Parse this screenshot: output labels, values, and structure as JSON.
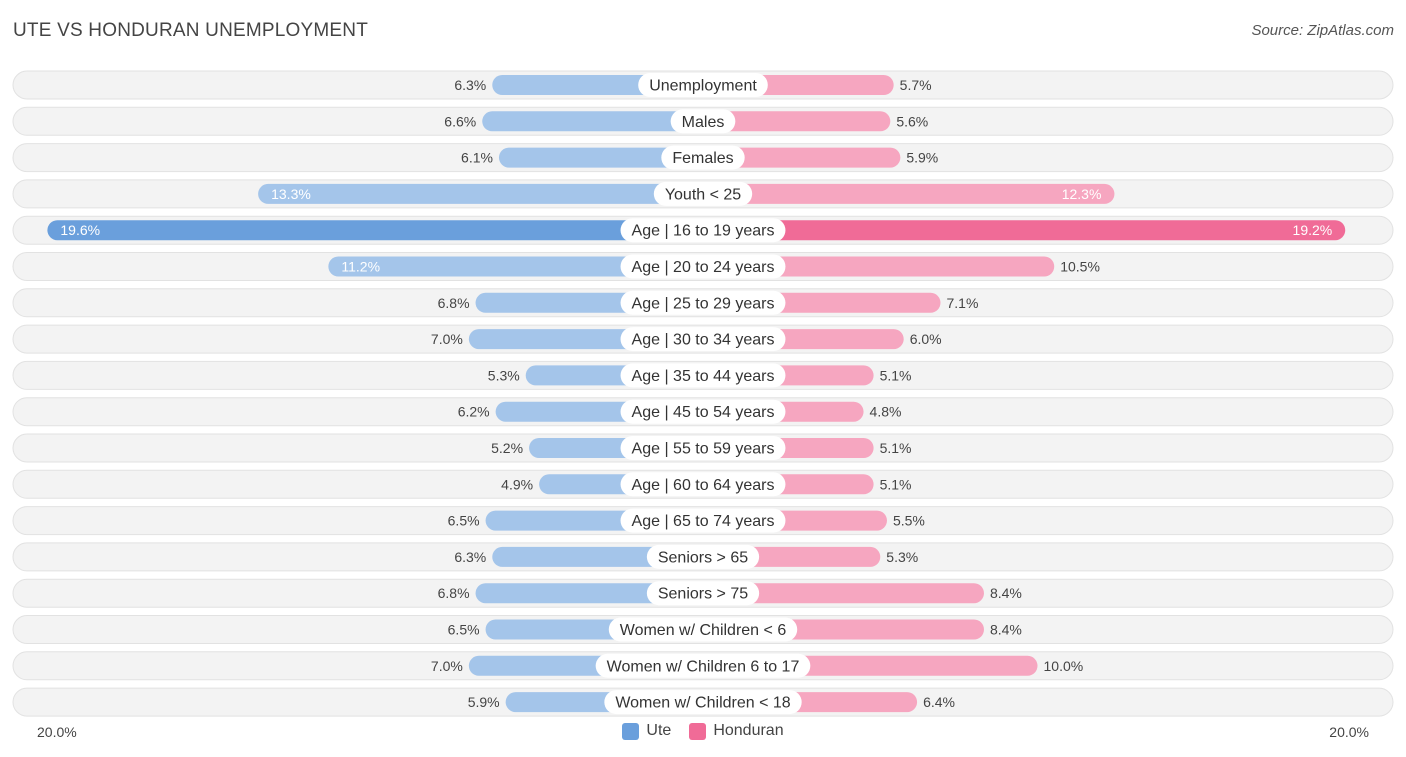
{
  "header": {
    "title": "UTE VS HONDURAN UNEMPLOYMENT",
    "source": "Source: ZipAtlas.com"
  },
  "colors": {
    "ute": "#a4c5ea",
    "ute_strong": "#6a9fdc",
    "honduran": "#f6a6c0",
    "honduran_strong": "#f06b97",
    "track": "#f1f1f1"
  },
  "chart_data": {
    "type": "bar",
    "orientation": "horizontal-diverging",
    "title": "UTE VS HONDURAN UNEMPLOYMENT",
    "x_max": 20.0,
    "axis_left_label": "20.0%",
    "axis_right_label": "20.0%",
    "legend": [
      "Ute",
      "Honduran"
    ],
    "legend_position": "bottom-center",
    "categories": [
      "Unemployment",
      "Males",
      "Females",
      "Youth < 25",
      "Age | 16 to 19 years",
      "Age | 20 to 24 years",
      "Age | 25 to 29 years",
      "Age | 30 to 34 years",
      "Age | 35 to 44 years",
      "Age | 45 to 54 years",
      "Age | 55 to 59 years",
      "Age | 60 to 64 years",
      "Age | 65 to 74 years",
      "Seniors > 65",
      "Seniors > 75",
      "Women w/ Children < 6",
      "Women w/ Children 6 to 17",
      "Women w/ Children < 18"
    ],
    "series": [
      {
        "name": "Ute",
        "values": [
          6.3,
          6.6,
          6.1,
          13.3,
          19.6,
          11.2,
          6.8,
          7.0,
          5.3,
          6.2,
          5.2,
          4.9,
          6.5,
          6.3,
          6.8,
          6.5,
          7.0,
          5.9
        ],
        "labels": [
          "6.3%",
          "6.6%",
          "6.1%",
          "13.3%",
          "19.6%",
          "11.2%",
          "6.8%",
          "7.0%",
          "5.3%",
          "6.2%",
          "5.2%",
          "4.9%",
          "6.5%",
          "6.3%",
          "6.8%",
          "6.5%",
          "7.0%",
          "5.9%"
        ]
      },
      {
        "name": "Honduran",
        "values": [
          5.7,
          5.6,
          5.9,
          12.3,
          19.2,
          10.5,
          7.1,
          6.0,
          5.1,
          4.8,
          5.1,
          5.1,
          5.5,
          5.3,
          8.4,
          8.4,
          10.0,
          6.4
        ],
        "labels": [
          "5.7%",
          "5.6%",
          "5.9%",
          "12.3%",
          "19.2%",
          "10.5%",
          "7.1%",
          "6.0%",
          "5.1%",
          "4.8%",
          "5.1%",
          "5.1%",
          "5.5%",
          "5.3%",
          "8.4%",
          "8.4%",
          "10.0%",
          "6.4%"
        ]
      }
    ]
  }
}
